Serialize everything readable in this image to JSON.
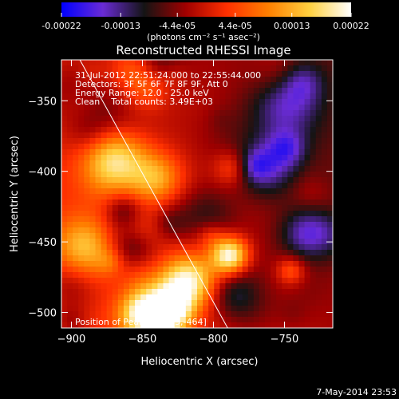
{
  "chart_data": {
    "type": "heatmap",
    "title": "Reconstructed RHESSI Image",
    "xlabel": "Heliocentric X (arcsec)",
    "ylabel": "Heliocentric Y (arcsec)",
    "xlim": [
      -907,
      -716
    ],
    "ylim": [
      -511,
      -321
    ],
    "x_ticks": [
      -900,
      -850,
      -800,
      -750
    ],
    "y_ticks": [
      -350,
      -400,
      -450,
      -500
    ],
    "colorbar": {
      "min": -0.00022,
      "max": 0.00022,
      "tick_values": [
        -0.00022,
        -0.00013,
        -4.4e-05,
        4.4e-05,
        0.00013,
        0.00022
      ],
      "tick_labels": [
        "-0.00022",
        "-0.00013",
        "-4.4e-05",
        "4.4e-05",
        "0.00013",
        "0.00022"
      ],
      "unit_label": "(photons cm⁻² s⁻¹ asec⁻²)",
      "colormap": [
        "#0000ff",
        "#6a2bd6",
        "#141414",
        "#a00000",
        "#ff3000",
        "#ff8000",
        "#ffd040",
        "#ffffff"
      ]
    },
    "annotations": [
      "31-Jul-2012 22:51:24.000 to 22:55:44.000",
      "Detectors: 3F 5F 6F 7F 8F 9F, Att 0",
      "Energy Range: 12.0 - 25.0 keV",
      "Clean    Total counts: 3.49E+03"
    ],
    "peak_label": "Position of Peak = [-813,-464]",
    "peak": [
      -813,
      -464
    ],
    "limb_line": [
      [
        -894,
        -321
      ],
      [
        -790,
        -511
      ]
    ],
    "footer": "7-May-2014 23:53"
  }
}
